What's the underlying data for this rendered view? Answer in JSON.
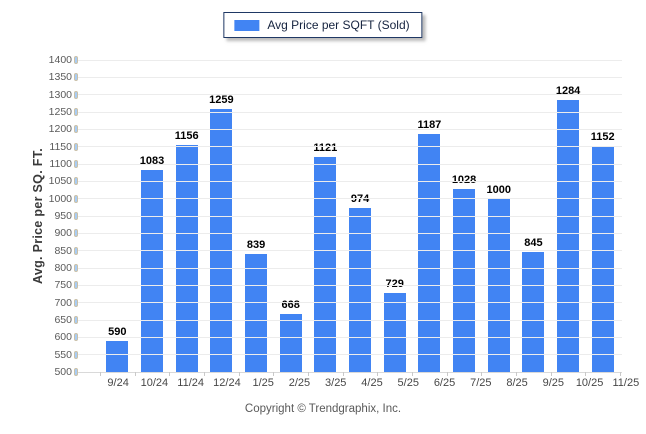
{
  "chart_data": {
    "type": "bar",
    "title": "",
    "legend": "Avg Price per SQFT (Sold)",
    "legend_position": "top-center",
    "xlabel": "",
    "ylabel": "Avg. Price per SQ. FT.",
    "categories": [
      "9/24",
      "10/24",
      "11/24",
      "12/24",
      "1/25",
      "2/25",
      "3/25",
      "4/25",
      "5/25",
      "6/25",
      "7/25",
      "8/25",
      "9/25",
      "10/25",
      "11/25"
    ],
    "values": [
      590,
      1083,
      1156,
      1259,
      839,
      668,
      1121,
      974,
      729,
      1187,
      1028,
      1000,
      845,
      1284,
      1152
    ],
    "ylim": [
      500,
      1400
    ],
    "ytick_step": 50,
    "yticks": [
      1400,
      1350,
      1300,
      1250,
      1200,
      1150,
      1100,
      1050,
      1000,
      950,
      900,
      850,
      800,
      750,
      700,
      650,
      600,
      550,
      500
    ],
    "grid": "horizontal",
    "bar_color": "#4184f3"
  },
  "colors": {
    "bar": "#4184f3",
    "grid": "#ececec",
    "baseline": "#d9d9d9",
    "y_axis_tick": "#a9cdf5",
    "x_axis_tick": "#c9c9c9",
    "legend_border": "#1f3864",
    "value_label": "#000000",
    "axis_text": "#5a5a5a",
    "footer_text": "#595959"
  },
  "footer": {
    "copyright": "Copyright © Trendgraphix, Inc."
  }
}
